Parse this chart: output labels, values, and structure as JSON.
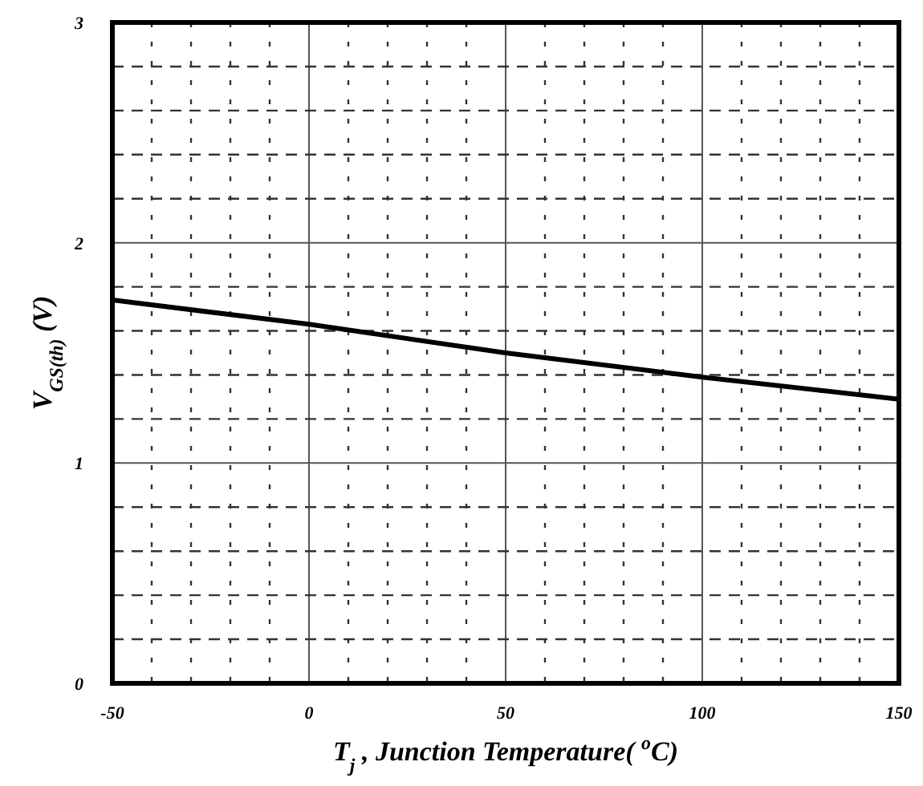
{
  "chart_data": {
    "type": "line",
    "xlabel": "T$_{j}$ , Junction Temperature( $^{o}$C)",
    "ylabel": "V$_{GS(th)}$ (V)",
    "x": [
      -50,
      0,
      50,
      100,
      150
    ],
    "series": [
      {
        "color": "#000000",
        "values": [
          1.74,
          1.63,
          1.5,
          1.39,
          1.29
        ]
      }
    ],
    "xlim": [
      -50,
      150
    ],
    "ylim": [
      0,
      3
    ],
    "xticks": [
      -50,
      {
        "value": -40,
        "label": null
      },
      {
        "value": -30,
        "label": null
      },
      {
        "value": -20,
        "label": null
      },
      {
        "value": -10,
        "label": null
      },
      0,
      {
        "value": 10,
        "label": null
      },
      {
        "value": 20,
        "label": null
      },
      {
        "value": 30,
        "label": null
      },
      {
        "value": 40,
        "label": null
      },
      50,
      {
        "value": 60,
        "label": null
      },
      {
        "value": 70,
        "label": null
      },
      {
        "value": 80,
        "label": null
      },
      {
        "value": 90,
        "label": null
      },
      100,
      {
        "value": 110,
        "label": null
      },
      {
        "value": 120,
        "label": null
      },
      {
        "value": 130,
        "label": null
      },
      {
        "value": 140,
        "label": null
      },
      150
    ],
    "yticks": [
      0,
      {
        "value": 0.2,
        "label": null
      },
      {
        "value": 0.4,
        "label": null
      },
      {
        "value": 0.6,
        "label": null
      },
      {
        "value": 0.8,
        "label": null
      },
      1,
      {
        "value": 1.2,
        "label": null
      },
      {
        "value": 1.4,
        "label": null
      },
      {
        "value": 1.6,
        "label": null
      },
      {
        "value": 1.8,
        "label": null
      },
      2,
      {
        "value": 2.2,
        "label": null
      },
      {
        "value": 2.4,
        "label": null
      },
      {
        "value": 2.6,
        "label": null
      },
      {
        "value": 2.8,
        "label": null
      },
      3
    ],
    "grid": true,
    "marker": "none",
    "line_style": "solid"
  }
}
